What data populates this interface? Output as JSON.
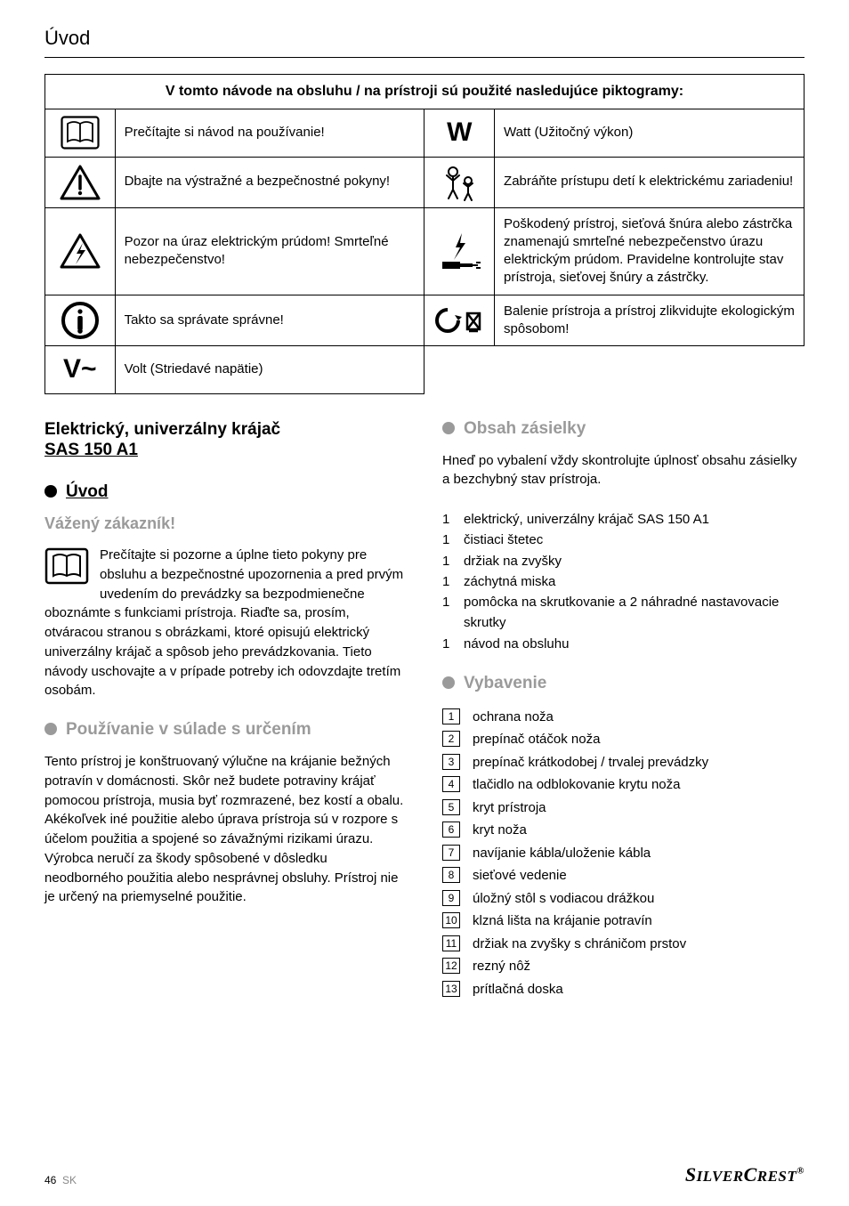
{
  "page_title": "Úvod",
  "table": {
    "header": "V tomto návode na obsluhu / na prístroji sú použité nasledujúce piktogramy:",
    "rows": [
      {
        "icon": "manual",
        "left": "Prečítajte si návod na používanie!",
        "icon2": "glyph-W",
        "right": "Watt (Užitočný výkon)"
      },
      {
        "icon": "warn",
        "left": "Dbajte na výstražné a bezpečnostné pokyny!",
        "icon2": "children",
        "right": "Zabráňte prístupu detí k elektrickému zariadeniu!"
      },
      {
        "icon": "shock",
        "left": "Pozor na úraz elektrickým prúdom! Smrteľné nebezpečenstvo!",
        "icon2": "damaged",
        "right": "Poškodený prístroj, sieťová šnúra alebo zástrčka znamenajú smrteľné nebezpečenstvo úrazu elektrickým prúdom. Pravidelne kontrolujte stav prístroja, sieťovej šnúry a zástrčky."
      },
      {
        "icon": "info",
        "left": "Takto sa správate správne!",
        "icon2": "recycle",
        "right": "Balenie prístroja a prístroj zlikvidujte ekologickým spôsobom!"
      },
      {
        "icon": "glyph-V",
        "left": "Volt (Striedavé napätie)",
        "icon2": null,
        "right": null
      }
    ]
  },
  "left_col": {
    "main_heading_l1": "Elektrický, univerzálny krájač",
    "main_heading_l2": "SAS 150 A1",
    "sec_uvod": "Úvod",
    "sub_customer": "Vážený zákazník!",
    "intro_para": "Prečítajte si pozorne a úplne tieto pokyny pre obsluhu a bezpečnostné upozornenia a pred prvým uvedením do prevádzky sa bezpodmienečne oboznámte s funkciami prístroja. Riaďte sa, prosím, otváracou stranou s obrázkami, ktoré opisujú elektrický univerzálny krájač a spôsob jeho prevádzkovania. Tieto návody uschovajte a v prípade potreby ich odovzdajte tretím osobám.",
    "sec_usage": "Používanie v súlade s určením",
    "usage_para": "Tento prístroj je konštruovaný výlučne na krájanie bežných potravín v domácnosti. Skôr než budete potraviny krájať pomocou prístroja, musia byť rozmrazené, bez kostí a obalu. Akékoľvek iné použitie alebo úprava prístroja sú v rozpore s účelom použitia a spojené so závažnými rizikami úrazu. Výrobca neručí za škody spôsobené v dôsledku neodborného použitia alebo nesprávnej obsluhy. Prístroj nie je určený na priemyselné použitie."
  },
  "right_col": {
    "sec_contents": "Obsah zásielky",
    "contents_para": "Hneď po vybalení vždy skontrolujte úplnosť obsahu zásielky a bezchybný stav prístroja.",
    "contents_list": [
      {
        "n": "1",
        "t": "elektrický, univerzálny krájač SAS 150 A1"
      },
      {
        "n": "1",
        "t": "čistiaci štetec"
      },
      {
        "n": "1",
        "t": "držiak na zvyšky"
      },
      {
        "n": "1",
        "t": "záchytná miska"
      },
      {
        "n": "1",
        "t": "pomôcka na skrutkovanie a 2 náhradné nastavovacie skrutky"
      },
      {
        "n": "1",
        "t": "návod na obsluhu"
      }
    ],
    "sec_equip": "Vybavenie",
    "equip_list": [
      {
        "n": "1",
        "t": "ochrana noža"
      },
      {
        "n": "2",
        "t": "prepínač otáčok noža"
      },
      {
        "n": "3",
        "t": "prepínač krátkodobej / trvalej prevádzky"
      },
      {
        "n": "4",
        "t": "tlačidlo na odblokovanie krytu noža"
      },
      {
        "n": "5",
        "t": "kryt prístroja"
      },
      {
        "n": "6",
        "t": "kryt noža"
      },
      {
        "n": "7",
        "t": "navíjanie kábla/uloženie kábla"
      },
      {
        "n": "8",
        "t": "sieťové vedenie"
      },
      {
        "n": "9",
        "t": "úložný stôl s vodiacou drážkou"
      },
      {
        "n": "10",
        "t": "klzná lišta na krájanie potravín"
      },
      {
        "n": "11",
        "t": "držiak na zvyšky s chráničom prstov"
      },
      {
        "n": "12",
        "t": "rezný nôž"
      },
      {
        "n": "13",
        "t": "prítlačná doska"
      }
    ]
  },
  "footer": {
    "page": "46",
    "lang": "SK",
    "brand": "SILVERCREST"
  },
  "colors": {
    "grey": "#9a9a9a",
    "black": "#000000",
    "white": "#ffffff"
  }
}
